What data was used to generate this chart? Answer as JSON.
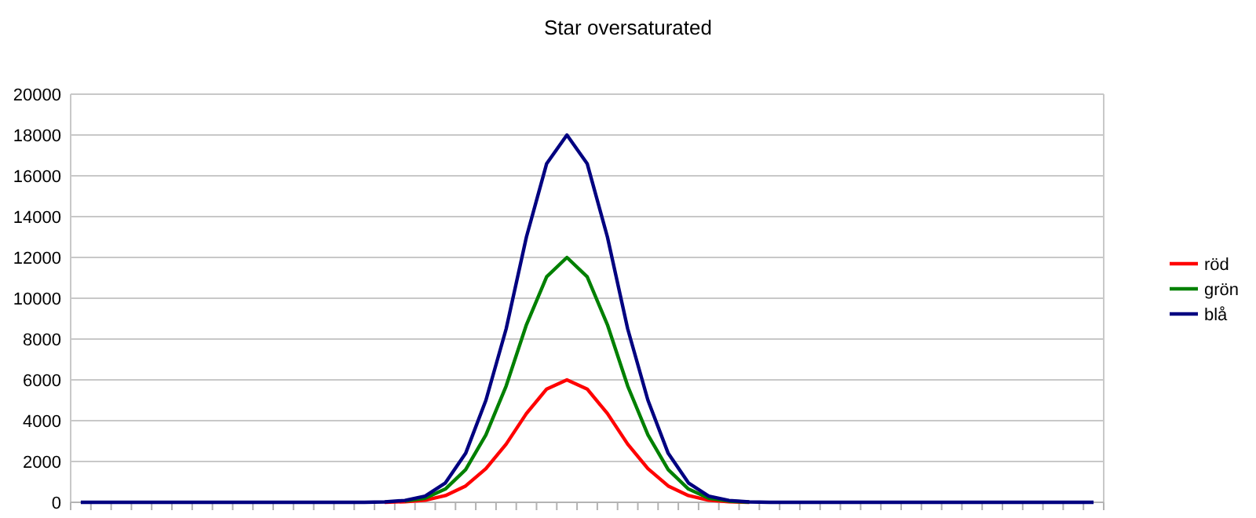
{
  "chart_data": {
    "type": "line",
    "title": "Star oversaturated",
    "categories": [
      null,
      null,
      null,
      null,
      null,
      null,
      null,
      null,
      null,
      null,
      null,
      null,
      null,
      null,
      null,
      null,
      null,
      null,
      null,
      null,
      null,
      null,
      null,
      null,
      null,
      null,
      null,
      null,
      null,
      null,
      null,
      null,
      null,
      null,
      null,
      null,
      null,
      null,
      null,
      null,
      null,
      null,
      null,
      null,
      null,
      null,
      null,
      null,
      null,
      null,
      null
    ],
    "series": [
      {
        "name": "röd",
        "color": "#ff0000",
        "values": [
          null,
          null,
          null,
          null,
          null,
          null,
          null,
          null,
          null,
          null,
          null,
          null,
          null,
          null,
          null,
          0,
          30,
          100,
          330,
          800,
          1650,
          2850,
          4350,
          5550,
          6000,
          5550,
          4350,
          2850,
          1650,
          800,
          330,
          100,
          30,
          0,
          null,
          null,
          null,
          null,
          null,
          null,
          null,
          null,
          null,
          null,
          null,
          null,
          null,
          null,
          null,
          null,
          null
        ]
      },
      {
        "name": "grön",
        "color": "#008000",
        "values": [
          null,
          null,
          null,
          null,
          null,
          null,
          null,
          null,
          null,
          null,
          null,
          null,
          null,
          null,
          null,
          null,
          60,
          200,
          650,
          1600,
          3300,
          5700,
          8700,
          11050,
          12000,
          11050,
          8700,
          5700,
          3300,
          1600,
          650,
          200,
          60,
          10,
          null,
          null,
          null,
          null,
          null,
          null,
          null,
          null,
          null,
          null,
          null,
          null,
          null,
          null,
          null,
          null,
          null
        ]
      },
      {
        "name": "blå",
        "color": "#000080",
        "values": [
          0,
          0,
          0,
          0,
          0,
          0,
          0,
          0,
          0,
          0,
          0,
          0,
          0,
          0,
          0,
          20,
          90,
          300,
          950,
          2400,
          5000,
          8500,
          13000,
          16600,
          18000,
          16600,
          13000,
          8500,
          5000,
          2400,
          950,
          300,
          90,
          20,
          0,
          0,
          0,
          0,
          0,
          0,
          0,
          0,
          0,
          0,
          0,
          0,
          0,
          0,
          0,
          0,
          0
        ]
      }
    ],
    "ylim": [
      0,
      20000
    ],
    "yticks": [
      0,
      2000,
      4000,
      6000,
      8000,
      10000,
      12000,
      14000,
      16000,
      18000,
      20000
    ],
    "grid": "y",
    "legend": "right",
    "marker": "none",
    "line_style": "solid"
  }
}
